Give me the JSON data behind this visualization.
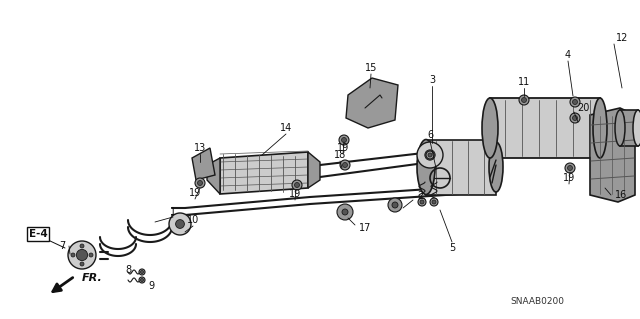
{
  "bg_color": "#ffffff",
  "line_color": "#1a1a1a",
  "gray_light": "#cccccc",
  "gray_med": "#999999",
  "gray_dark": "#555555",
  "diagram_id": "SNAAB0200",
  "figsize": [
    6.4,
    3.19
  ],
  "dpi": 100
}
